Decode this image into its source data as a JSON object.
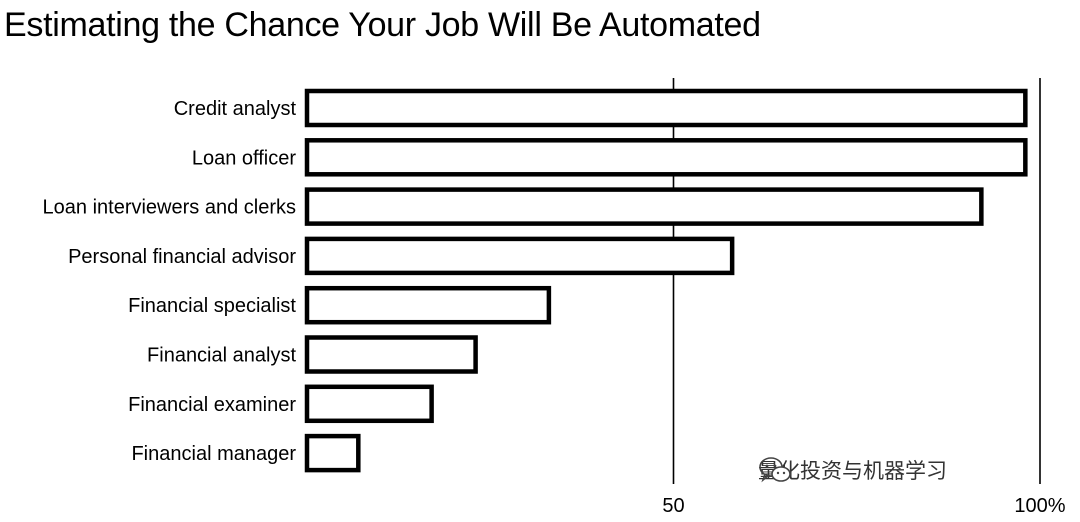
{
  "chart_data": {
    "type": "bar",
    "orientation": "horizontal",
    "title": "Estimating the Chance Your Job Will Be Automated",
    "xlabel": "",
    "ylabel": "",
    "categories": [
      "Credit analyst",
      "Loan officer",
      "Loan interviewers and clerks",
      "Personal financial advisor",
      "Financial specialist",
      "Financial analyst",
      "Financial examiner",
      "Financial manager"
    ],
    "values": [
      98,
      98,
      92,
      58,
      33,
      23,
      17,
      7
    ],
    "xlim": [
      0,
      100
    ],
    "xticks": [
      {
        "value": 50,
        "label": "50"
      },
      {
        "value": 100,
        "label": "100%"
      }
    ],
    "grid": false,
    "legend": "none",
    "bar_fill": "#ffffff",
    "bar_stroke": "#000000"
  },
  "watermark": {
    "text": "量化投资与机器学习",
    "icon": "wechat-icon"
  }
}
